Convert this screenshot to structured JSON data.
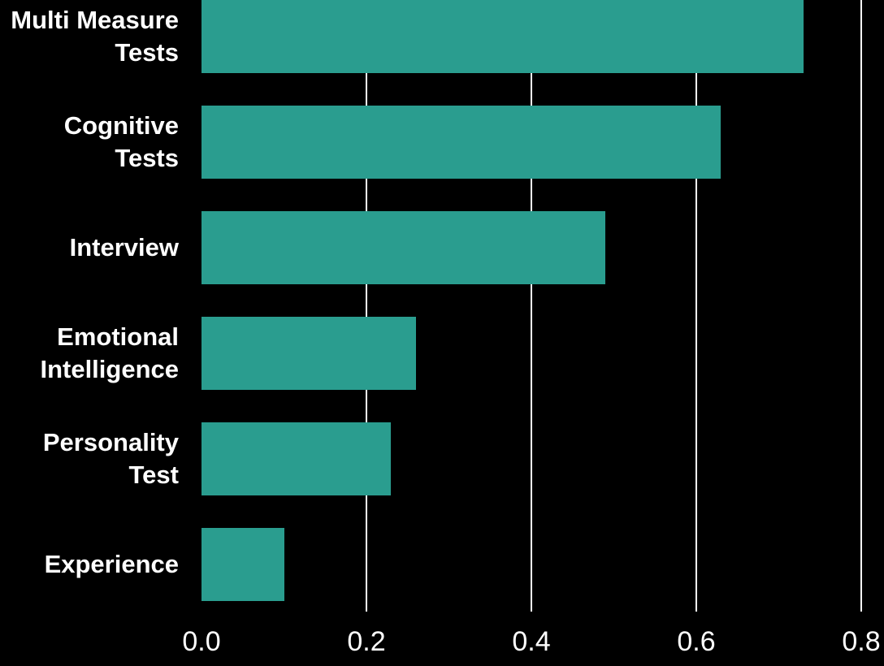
{
  "chart_data": {
    "type": "bar",
    "orientation": "horizontal",
    "title": "",
    "xlabel": "",
    "ylabel": "",
    "categories": [
      "Multi Measure Tests",
      "Cognitive Tests",
      "Interview",
      "Emotional Intelligence",
      "Personality Test",
      "Experience"
    ],
    "category_label_lines": [
      [
        "Multi Measure",
        "Tests"
      ],
      [
        "Cognitive",
        "Tests"
      ],
      [
        "Interview"
      ],
      [
        "Emotional",
        "Intelligence"
      ],
      [
        "Personality",
        "Test"
      ],
      [
        "Experience"
      ]
    ],
    "values": [
      0.73,
      0.63,
      0.49,
      0.26,
      0.23,
      0.1
    ],
    "xlim": [
      0,
      0.8
    ],
    "x_ticks": [
      0.0,
      0.2,
      0.4,
      0.6,
      0.8
    ],
    "x_tick_labels": [
      "0.0",
      "0.2",
      "0.4",
      "0.6",
      "0.8"
    ],
    "gridlines": {
      "axis": "x",
      "at": [
        0.2,
        0.4,
        0.6,
        0.8
      ],
      "color": "#ffffff",
      "behind_bars": true
    },
    "legend": "none",
    "colors": {
      "bar": "#2A9D8F",
      "background": "#000000",
      "text": "#ffffff",
      "gridline": "#ffffff"
    }
  }
}
